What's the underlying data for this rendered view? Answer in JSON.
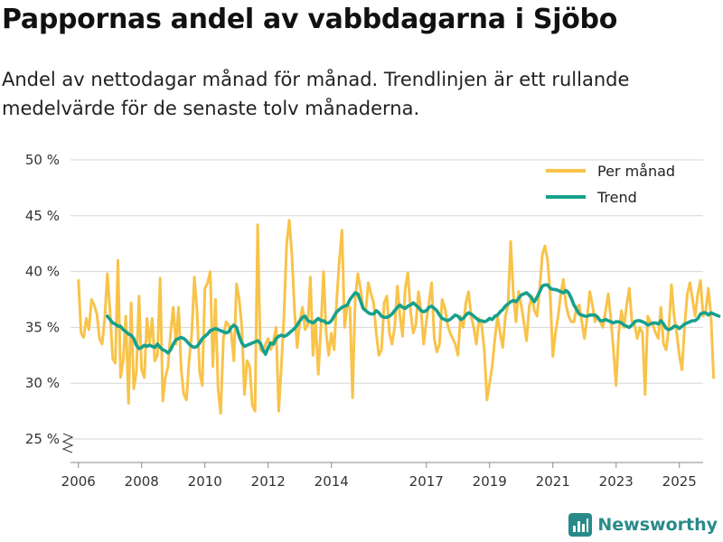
{
  "title": "Pappornas andel av vabbdagarna i Sjöbo",
  "subtitle": "Andel av nettodagar månad för månad. Trendlinjen är ett rullande medelvärde för de senaste tolv månaderna.",
  "brand": "Newsworthy",
  "colors": {
    "monthly": "#f8c34a",
    "trend": "#17a08c",
    "grid": "#d6d6d6",
    "brand": "#2a8a8a"
  },
  "chart_data": {
    "type": "line",
    "title": "Pappornas andel av vabbdagarna i Sjöbo",
    "xlabel": "",
    "ylabel": "",
    "ylim": [
      25,
      50
    ],
    "xlim": [
      2005.75,
      2025.75
    ],
    "y_ticks": [
      25,
      30,
      35,
      40,
      45,
      50
    ],
    "y_tick_labels": [
      "25 %",
      "30 %",
      "35 %",
      "40 %",
      "45 %",
      "50 %"
    ],
    "x_ticks": [
      2006,
      2008,
      2010,
      2012,
      2014,
      2017,
      2019,
      2021,
      2023,
      2025
    ],
    "x_tick_labels": [
      "2006",
      "2008",
      "2010",
      "2012",
      "2014",
      "2017",
      "2019",
      "2021",
      "2023",
      "2025"
    ],
    "legend": {
      "position": "top-right",
      "entries": [
        "Per månad",
        "Trend"
      ]
    },
    "series": [
      {
        "name": "Per månad",
        "x_start": 2006.0,
        "step": 0.08333,
        "values": [
          39.2,
          34.5,
          34.1,
          35.8,
          34.8,
          37.5,
          37.0,
          36.2,
          34.0,
          33.5,
          35.8,
          39.8,
          36.5,
          32.2,
          31.8,
          41.0,
          30.5,
          32.0,
          36.0,
          28.2,
          37.2,
          29.5,
          31.0,
          37.8,
          31.2,
          30.5,
          35.8,
          33.5,
          35.8,
          32.0,
          32.5,
          39.4,
          28.4,
          30.5,
          31.5,
          34.5,
          36.8,
          33.5,
          36.8,
          31.2,
          29.0,
          28.5,
          32.0,
          34.5,
          39.5,
          36.5,
          31.0,
          29.8,
          38.5,
          39.0,
          40.0,
          31.5,
          37.5,
          29.5,
          27.3,
          34.0,
          35.5,
          35.2,
          34.5,
          32.0,
          38.9,
          37.5,
          35.0,
          29.0,
          32.0,
          31.5,
          28.0,
          27.5,
          44.2,
          33.0,
          32.8,
          33.5,
          34.0,
          33.0,
          33.8,
          35.0,
          27.5,
          31.5,
          36.0,
          42.5,
          44.6,
          41.5,
          36.5,
          33.2,
          35.5,
          36.8,
          34.8,
          35.2,
          39.5,
          32.5,
          35.5,
          30.8,
          35.0,
          40.0,
          34.5,
          32.5,
          34.5,
          33.0,
          37.5,
          41.0,
          43.7,
          35.0,
          37.0,
          36.8,
          28.7,
          37.5,
          39.8,
          38.5,
          36.8,
          36.5,
          39.0,
          38.0,
          37.2,
          34.5,
          32.5,
          33.0,
          37.2,
          37.8,
          34.5,
          33.5,
          35.0,
          38.7,
          36.0,
          34.2,
          38.5,
          39.9,
          36.5,
          34.5,
          35.2,
          38.2,
          36.5,
          33.5,
          35.5,
          37.2,
          39.0,
          34.0,
          32.8,
          33.5,
          37.5,
          36.8,
          35.3,
          34.5,
          34.0,
          33.5,
          32.5,
          36.0,
          35.0,
          37.2,
          38.2,
          36.0,
          35.0,
          33.5,
          35.8,
          35.2,
          33.0,
          28.5,
          30.0,
          31.5,
          34.0,
          36.0,
          34.5,
          33.2,
          36.0,
          37.0,
          42.7,
          38.0,
          35.5,
          38.2,
          37.0,
          35.5,
          33.8,
          36.8,
          37.8,
          36.5,
          36.0,
          38.4,
          41.5,
          42.3,
          41.0,
          38.0,
          32.4,
          34.5,
          36.0,
          38.0,
          39.3,
          37.0,
          36.0,
          35.5,
          35.5,
          36.8,
          37.0,
          35.5,
          34.0,
          35.8,
          38.2,
          37.0,
          35.5,
          36.0,
          35.5,
          35.0,
          36.5,
          38.0,
          35.8,
          33.0,
          29.8,
          34.5,
          36.5,
          35.0,
          37.0,
          38.5,
          35.5,
          35.3,
          34.0,
          35.0,
          34.5,
          29.0,
          36.0,
          35.5,
          35.2,
          34.5,
          34.0,
          36.8,
          33.5,
          33.0,
          35.0,
          38.8,
          36.0,
          34.5,
          32.5,
          31.2,
          35.2,
          38.0,
          39.0,
          37.5,
          36.0,
          38.0,
          39.2,
          36.0,
          36.5,
          38.5,
          36.0,
          30.5
        ]
      },
      {
        "name": "Trend",
        "x_start": 2006.917,
        "step": 0.08333,
        "values": [
          36.0,
          35.7,
          35.4,
          35.3,
          35.1,
          35.1,
          34.8,
          34.6,
          34.4,
          34.3,
          34.0,
          33.4,
          33.1,
          33.2,
          33.4,
          33.3,
          33.4,
          33.3,
          33.2,
          33.5,
          33.2,
          33.0,
          32.9,
          32.7,
          33.0,
          33.5,
          33.9,
          34.0,
          34.1,
          34.0,
          33.8,
          33.5,
          33.3,
          33.2,
          33.3,
          33.6,
          34.0,
          34.2,
          34.4,
          34.7,
          34.8,
          34.9,
          34.8,
          34.7,
          34.6,
          34.5,
          34.6,
          35.0,
          35.2,
          35.0,
          34.2,
          33.6,
          33.3,
          33.4,
          33.5,
          33.6,
          33.7,
          33.8,
          33.6,
          33.0,
          32.6,
          33.2,
          33.6,
          33.5,
          34.0,
          34.2,
          34.3,
          34.2,
          34.3,
          34.5,
          34.7,
          34.9,
          35.2,
          35.6,
          35.9,
          36.0,
          35.6,
          35.5,
          35.4,
          35.6,
          35.8,
          35.6,
          35.6,
          35.4,
          35.4,
          35.6,
          36.0,
          36.4,
          36.6,
          36.8,
          36.9,
          37.0,
          37.5,
          37.8,
          38.1,
          38.0,
          37.4,
          36.7,
          36.5,
          36.3,
          36.2,
          36.2,
          36.5,
          36.3,
          36.0,
          35.9,
          35.9,
          36.0,
          36.2,
          36.5,
          36.8,
          37.0,
          36.8,
          36.7,
          36.9,
          37.0,
          37.2,
          37.0,
          36.8,
          36.5,
          36.4,
          36.5,
          36.8,
          36.9,
          36.7,
          36.5,
          36.1,
          35.8,
          35.7,
          35.6,
          35.7,
          35.9,
          36.1,
          36.0,
          35.7,
          35.8,
          36.1,
          36.3,
          36.2,
          36.0,
          35.8,
          35.6,
          35.6,
          35.5,
          35.6,
          35.8,
          35.7,
          36.0,
          36.1,
          36.4,
          36.6,
          36.9,
          37.1,
          37.3,
          37.4,
          37.3,
          37.6,
          37.9,
          38.0,
          38.1,
          37.9,
          37.6,
          37.3,
          37.7,
          38.2,
          38.7,
          38.8,
          38.8,
          38.5,
          38.4,
          38.4,
          38.3,
          38.2,
          38.1,
          38.3,
          38.1,
          37.6,
          37.0,
          36.6,
          36.2,
          36.1,
          36.0,
          36.0,
          36.1,
          36.1,
          36.1,
          35.9,
          35.6,
          35.6,
          35.7,
          35.6,
          35.5,
          35.4,
          35.5,
          35.5,
          35.4,
          35.2,
          35.1,
          35.0,
          35.2,
          35.5,
          35.6,
          35.6,
          35.5,
          35.4,
          35.2,
          35.3,
          35.4,
          35.4,
          35.3,
          35.6,
          35.3,
          34.9,
          34.8,
          34.9,
          35.1,
          35.1,
          34.9,
          35.1,
          35.3,
          35.4,
          35.5,
          35.6,
          35.6,
          35.8,
          36.2,
          36.3,
          36.3,
          36.1,
          36.3,
          36.2,
          36.1,
          36.0
        ]
      }
    ]
  }
}
